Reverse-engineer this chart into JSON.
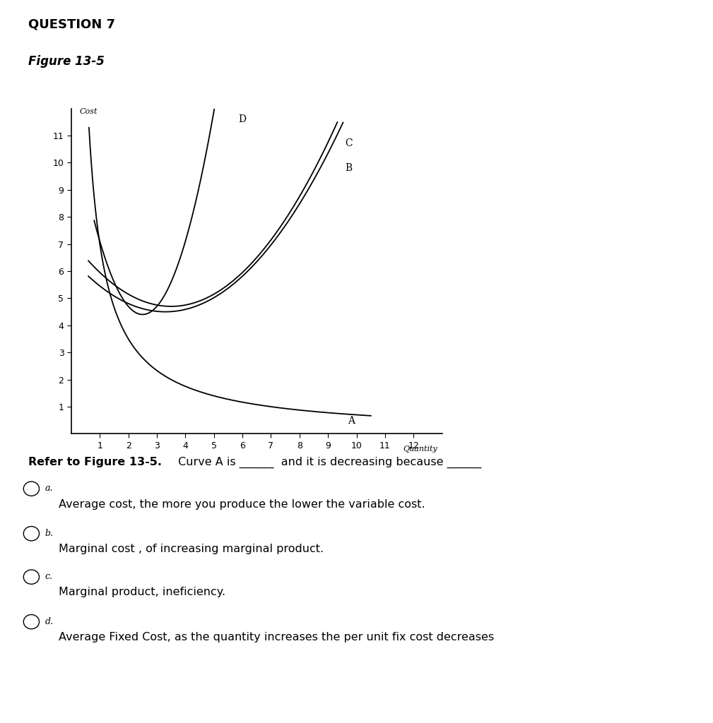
{
  "title": "QUESTION 7",
  "figure_label": "Figure 13-5",
  "ylabel_text": "Cost",
  "xlabel_text": "Quantity",
  "xlim": [
    0,
    13
  ],
  "ylim": [
    0,
    12
  ],
  "xticks": [
    1,
    2,
    3,
    4,
    5,
    6,
    7,
    8,
    9,
    10,
    11,
    12
  ],
  "yticks": [
    1,
    2,
    3,
    4,
    5,
    6,
    7,
    8,
    9,
    10,
    11
  ],
  "curve_color": "#000000",
  "bg_color": "#ffffff",
  "curve_A_k": 7.0,
  "curve_B_a": 0.18,
  "curve_B_xmin": 3.3,
  "curve_B_ymin": 4.5,
  "curve_C_a": 0.2,
  "curve_C_xmin": 3.5,
  "curve_C_ymin": 4.7,
  "curve_D_x1": 1.0,
  "curve_D_y1": 6.5,
  "curve_D_x2": 6.2,
  "curve_D_y2": 12.0,
  "question_bold": "Refer to Figure 13-5.",
  "question_rest": " Curve A is ______  and it is decreasing because ______",
  "options": [
    [
      "a.",
      "Average cost, the more you produce the lower the variable cost."
    ],
    [
      "b.",
      "Marginal cost , of increasing marginal product."
    ],
    [
      "c.",
      "Marginal product, ineficiency."
    ],
    [
      "d.",
      "Average Fixed Cost, as the quantity increases the per unit fix cost decreases"
    ]
  ]
}
